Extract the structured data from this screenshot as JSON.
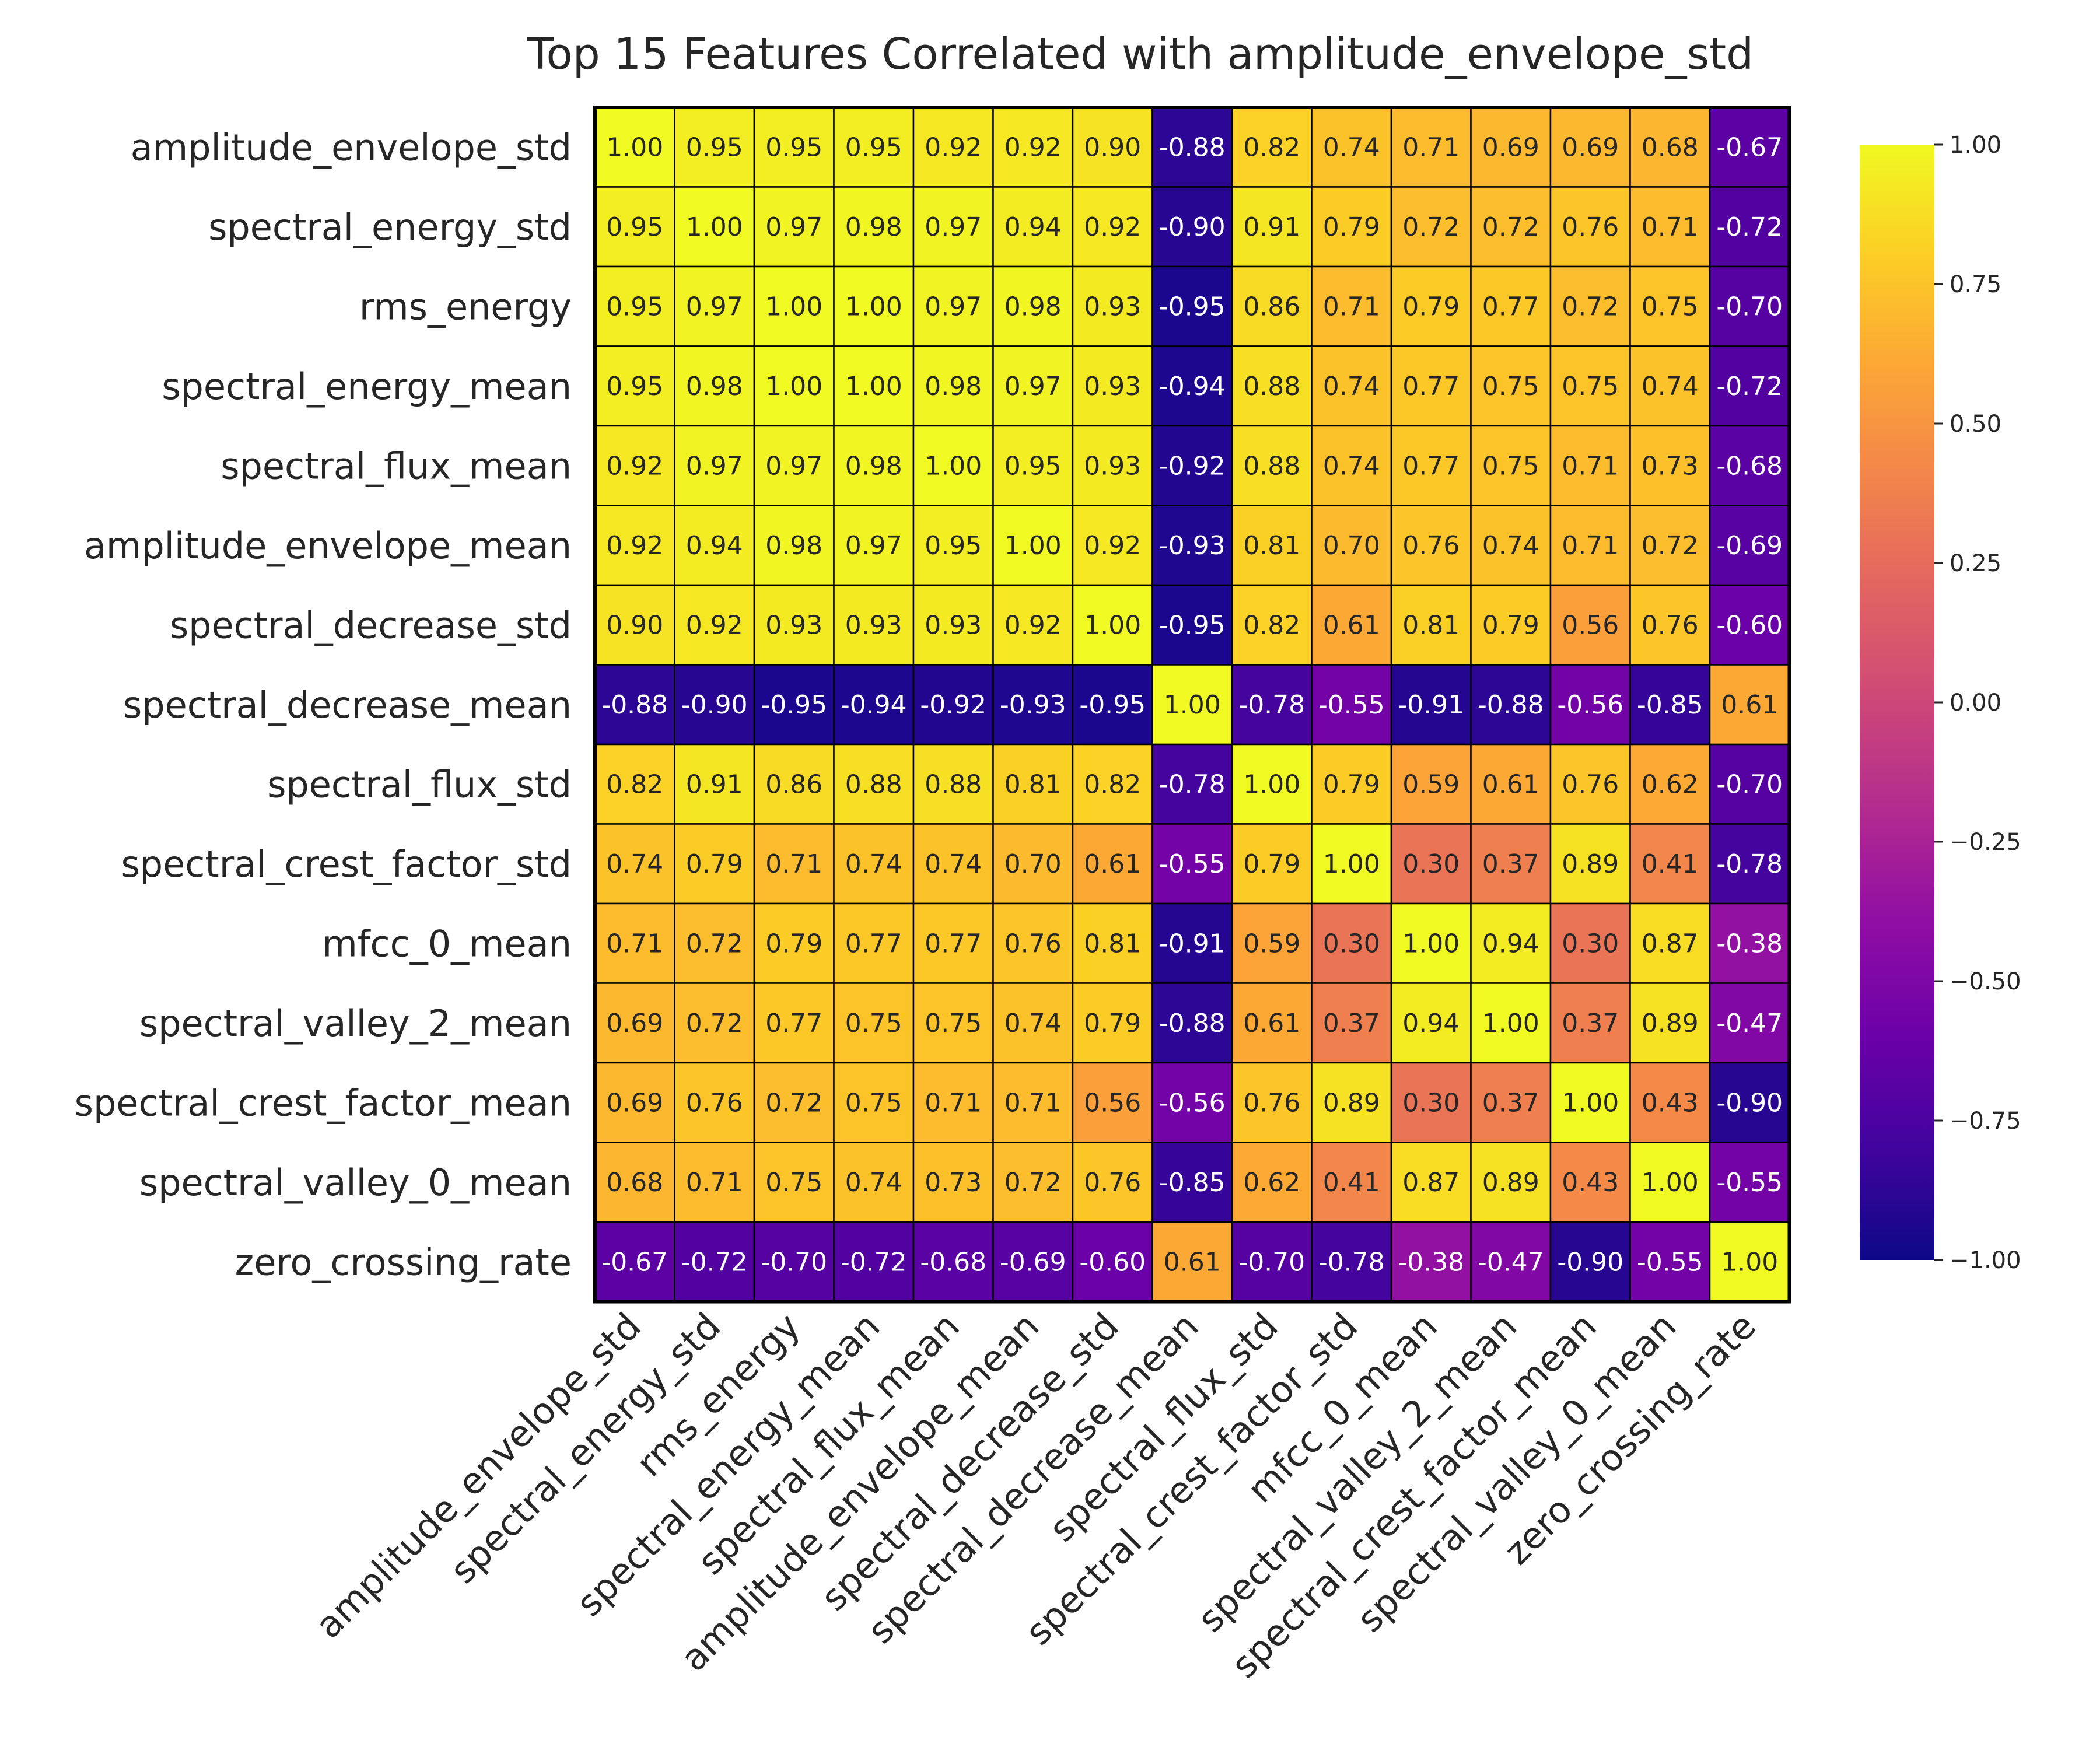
{
  "chart_data": {
    "type": "heatmap",
    "title": "Top 15 Features Correlated with amplitude_envelope_std",
    "xlabel": "",
    "ylabel": "",
    "colormap": "plasma",
    "vmin": -1.0,
    "vmax": 1.0,
    "labels": [
      "amplitude_envelope_std",
      "spectral_energy_std",
      "rms_energy",
      "spectral_energy_mean",
      "spectral_flux_mean",
      "amplitude_envelope_mean",
      "spectral_decrease_std",
      "spectral_decrease_mean",
      "spectral_flux_std",
      "spectral_crest_factor_std",
      "mfcc_0_mean",
      "spectral_valley_2_mean",
      "spectral_crest_factor_mean",
      "spectral_valley_0_mean",
      "zero_crossing_rate"
    ],
    "matrix": [
      [
        1.0,
        0.95,
        0.95,
        0.95,
        0.92,
        0.92,
        0.9,
        -0.88,
        0.82,
        0.74,
        0.71,
        0.69,
        0.69,
        0.68,
        -0.67
      ],
      [
        0.95,
        1.0,
        0.97,
        0.98,
        0.97,
        0.94,
        0.92,
        -0.9,
        0.91,
        0.79,
        0.72,
        0.72,
        0.76,
        0.71,
        -0.72
      ],
      [
        0.95,
        0.97,
        1.0,
        1.0,
        0.97,
        0.98,
        0.93,
        -0.95,
        0.86,
        0.71,
        0.79,
        0.77,
        0.72,
        0.75,
        -0.7
      ],
      [
        0.95,
        0.98,
        1.0,
        1.0,
        0.98,
        0.97,
        0.93,
        -0.94,
        0.88,
        0.74,
        0.77,
        0.75,
        0.75,
        0.74,
        -0.72
      ],
      [
        0.92,
        0.97,
        0.97,
        0.98,
        1.0,
        0.95,
        0.93,
        -0.92,
        0.88,
        0.74,
        0.77,
        0.75,
        0.71,
        0.73,
        -0.68
      ],
      [
        0.92,
        0.94,
        0.98,
        0.97,
        0.95,
        1.0,
        0.92,
        -0.93,
        0.81,
        0.7,
        0.76,
        0.74,
        0.71,
        0.72,
        -0.69
      ],
      [
        0.9,
        0.92,
        0.93,
        0.93,
        0.93,
        0.92,
        1.0,
        -0.95,
        0.82,
        0.61,
        0.81,
        0.79,
        0.56,
        0.76,
        -0.6
      ],
      [
        -0.88,
        -0.9,
        -0.95,
        -0.94,
        -0.92,
        -0.93,
        -0.95,
        1.0,
        -0.78,
        -0.55,
        -0.91,
        -0.88,
        -0.56,
        -0.85,
        0.61
      ],
      [
        0.82,
        0.91,
        0.86,
        0.88,
        0.88,
        0.81,
        0.82,
        -0.78,
        1.0,
        0.79,
        0.59,
        0.61,
        0.76,
        0.62,
        -0.7
      ],
      [
        0.74,
        0.79,
        0.71,
        0.74,
        0.74,
        0.7,
        0.61,
        -0.55,
        0.79,
        1.0,
        0.3,
        0.37,
        0.89,
        0.41,
        -0.78
      ],
      [
        0.71,
        0.72,
        0.79,
        0.77,
        0.77,
        0.76,
        0.81,
        -0.91,
        0.59,
        0.3,
        1.0,
        0.94,
        0.3,
        0.87,
        -0.38
      ],
      [
        0.69,
        0.72,
        0.77,
        0.75,
        0.75,
        0.74,
        0.79,
        -0.88,
        0.61,
        0.37,
        0.94,
        1.0,
        0.37,
        0.89,
        -0.47
      ],
      [
        0.69,
        0.76,
        0.72,
        0.75,
        0.71,
        0.71,
        0.56,
        -0.56,
        0.76,
        0.89,
        0.3,
        0.37,
        1.0,
        0.43,
        -0.9
      ],
      [
        0.68,
        0.71,
        0.75,
        0.74,
        0.73,
        0.72,
        0.76,
        -0.85,
        0.62,
        0.41,
        0.87,
        0.89,
        0.43,
        1.0,
        -0.55
      ],
      [
        -0.67,
        -0.72,
        -0.7,
        -0.72,
        -0.68,
        -0.69,
        -0.6,
        0.61,
        -0.7,
        -0.78,
        -0.38,
        -0.47,
        -0.9,
        -0.55,
        1.0
      ]
    ],
    "colorbar_ticks": [
      "1.00",
      "0.75",
      "0.50",
      "0.25",
      "0.00",
      "−0.25",
      "−0.50",
      "−0.75",
      "−1.00"
    ],
    "colorbar_tick_values": [
      1.0,
      0.75,
      0.5,
      0.25,
      0.0,
      -0.25,
      -0.5,
      -0.75,
      -1.0
    ],
    "grid": true,
    "legend": "colorbar-right"
  }
}
